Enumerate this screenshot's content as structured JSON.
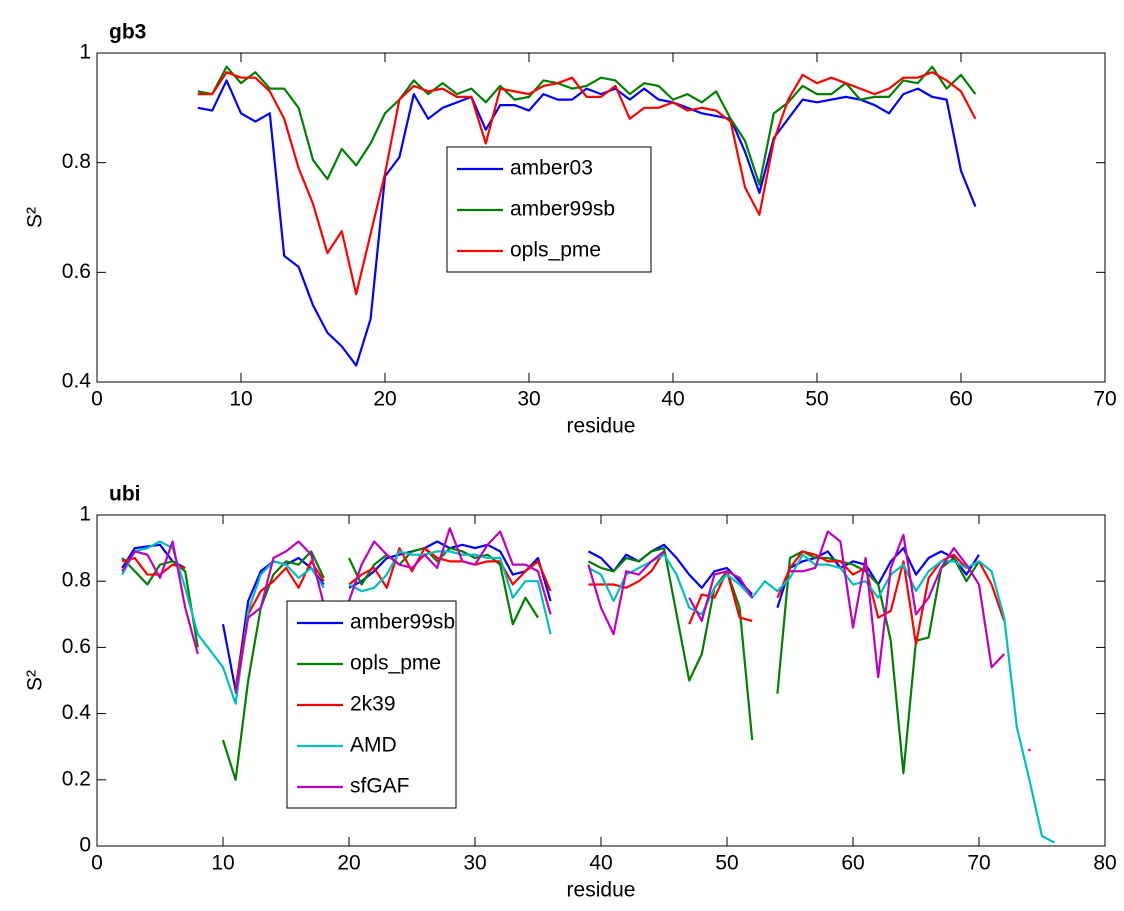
{
  "chart_data": [
    {
      "type": "line",
      "title": "gb3",
      "xlabel": "residue",
      "ylabel": "S²",
      "xlim": [
        0,
        70
      ],
      "xticks": [
        0,
        10,
        20,
        30,
        40,
        50,
        60,
        70
      ],
      "ylim": [
        0.4,
        1
      ],
      "yticks": [
        0.4,
        0.6,
        0.8,
        1
      ],
      "x": [
        7,
        8,
        9,
        10,
        11,
        12,
        13,
        14,
        15,
        16,
        17,
        18,
        19,
        20,
        21,
        22,
        23,
        24,
        25,
        26,
        27,
        28,
        29,
        30,
        31,
        32,
        33,
        34,
        35,
        36,
        37,
        38,
        39,
        40,
        41,
        42,
        43,
        44,
        45,
        46,
        47,
        48,
        49,
        50,
        51,
        52,
        53,
        54,
        55,
        56,
        57,
        58,
        59,
        60,
        61
      ],
      "series": [
        {
          "name": "amber03",
          "color": "#0000ff",
          "values": [
            0.9,
            0.895,
            0.95,
            0.89,
            0.875,
            0.89,
            0.63,
            0.61,
            0.54,
            0.49,
            0.465,
            0.43,
            0.515,
            0.775,
            0.81,
            0.925,
            0.88,
            0.9,
            0.91,
            0.92,
            0.86,
            0.905,
            0.905,
            0.895,
            0.925,
            0.915,
            0.915,
            0.935,
            0.925,
            0.935,
            0.915,
            0.935,
            0.915,
            0.91,
            0.9,
            0.89,
            0.885,
            0.88,
            0.82,
            0.745,
            0.845,
            0.88,
            0.915,
            0.91,
            0.915,
            0.92,
            0.915,
            0.905,
            0.89,
            0.925,
            0.935,
            0.92,
            0.915,
            0.785,
            0.72
          ]
        },
        {
          "name": "amber99sb",
          "color": "#008000",
          "values": [
            0.93,
            0.925,
            0.975,
            0.945,
            0.965,
            0.935,
            0.935,
            0.9,
            0.805,
            0.77,
            0.825,
            0.795,
            0.835,
            0.89,
            0.915,
            0.95,
            0.925,
            0.945,
            0.925,
            0.935,
            0.91,
            0.94,
            0.915,
            0.92,
            0.95,
            0.945,
            0.935,
            0.94,
            0.955,
            0.95,
            0.925,
            0.945,
            0.94,
            0.915,
            0.925,
            0.91,
            0.93,
            0.88,
            0.84,
            0.76,
            0.89,
            0.91,
            0.94,
            0.925,
            0.925,
            0.945,
            0.915,
            0.92,
            0.92,
            0.95,
            0.945,
            0.975,
            0.935,
            0.96,
            0.925
          ]
        },
        {
          "name": "opls_pme",
          "color": "#ff0000",
          "values": [
            0.925,
            0.925,
            0.965,
            0.955,
            0.955,
            0.93,
            0.88,
            0.79,
            0.725,
            0.635,
            0.675,
            0.56,
            0.67,
            0.78,
            0.915,
            0.94,
            0.93,
            0.935,
            0.92,
            0.92,
            0.835,
            0.935,
            0.93,
            0.925,
            0.94,
            0.945,
            0.955,
            0.92,
            0.92,
            0.94,
            0.88,
            0.9,
            0.9,
            0.91,
            0.895,
            0.9,
            0.895,
            0.875,
            0.755,
            0.705,
            0.84,
            0.915,
            0.96,
            0.945,
            0.955,
            0.945,
            0.935,
            0.925,
            0.935,
            0.955,
            0.955,
            0.965,
            0.95,
            0.93,
            0.88
          ]
        }
      ]
    },
    {
      "type": "line",
      "title": "ubi",
      "xlabel": "residue",
      "ylabel": "S²",
      "xlim": [
        0,
        80
      ],
      "xticks": [
        0,
        10,
        20,
        30,
        40,
        50,
        60,
        70,
        80
      ],
      "ylim": [
        0,
        1
      ],
      "yticks": [
        0,
        0.2,
        0.4,
        0.6,
        0.8,
        1
      ],
      "x": [
        2,
        3,
        4,
        5,
        6,
        7,
        8,
        9,
        10,
        11,
        12,
        13,
        14,
        15,
        16,
        17,
        18,
        19,
        20,
        21,
        22,
        23,
        24,
        25,
        26,
        27,
        28,
        29,
        30,
        31,
        32,
        33,
        34,
        35,
        36,
        37,
        38,
        39,
        40,
        41,
        42,
        43,
        44,
        45,
        46,
        47,
        48,
        49,
        50,
        51,
        52,
        53,
        54,
        55,
        56,
        57,
        58,
        59,
        60,
        61,
        62,
        63,
        64,
        65,
        66,
        67,
        68,
        69,
        70,
        71,
        72,
        73,
        74,
        75,
        76
      ],
      "series": [
        {
          "name": "amber99sb",
          "color": "#0000ff",
          "values": [
            0.84,
            0.9,
            0.905,
            0.91,
            0.86,
            0.84,
            null,
            null,
            0.67,
            0.47,
            0.74,
            0.83,
            0.86,
            0.85,
            0.87,
            0.84,
            0.79,
            null,
            0.78,
            0.8,
            0.83,
            0.87,
            0.88,
            0.89,
            0.9,
            0.92,
            0.9,
            0.91,
            0.9,
            0.91,
            0.89,
            0.82,
            0.83,
            0.87,
            0.74,
            null,
            null,
            0.89,
            0.87,
            0.83,
            0.88,
            0.86,
            0.89,
            0.91,
            0.87,
            0.82,
            0.78,
            0.83,
            0.84,
            0.8,
            0.76,
            null,
            0.72,
            0.84,
            0.86,
            0.87,
            0.89,
            0.84,
            0.86,
            0.85,
            0.79,
            0.86,
            0.9,
            0.82,
            0.87,
            0.89,
            0.87,
            0.82,
            0.88,
            null,
            null,
            null,
            null,
            null,
            null
          ]
        },
        {
          "name": "opls_pme",
          "color": "#008000",
          "values": [
            0.87,
            0.83,
            0.79,
            0.85,
            0.86,
            0.83,
            0.6,
            null,
            0.32,
            0.2,
            0.5,
            0.72,
            0.82,
            0.86,
            0.85,
            0.89,
            0.81,
            null,
            0.87,
            0.79,
            0.85,
            0.88,
            0.85,
            0.89,
            0.9,
            0.86,
            0.9,
            0.89,
            0.87,
            0.88,
            0.85,
            0.67,
            0.75,
            0.69,
            null,
            null,
            null,
            0.86,
            0.84,
            0.83,
            0.87,
            0.86,
            0.89,
            0.9,
            0.7,
            0.5,
            0.58,
            0.78,
            0.83,
            0.72,
            0.32,
            null,
            0.46,
            0.87,
            0.89,
            0.87,
            0.87,
            0.86,
            0.85,
            0.83,
            0.79,
            0.62,
            0.22,
            0.62,
            0.63,
            0.84,
            0.87,
            0.8,
            0.86,
            null,
            null,
            null,
            null,
            null,
            null
          ]
        },
        {
          "name": "2k39",
          "color": "#ff0000",
          "values": [
            0.86,
            0.87,
            0.82,
            0.82,
            0.85,
            0.84,
            null,
            null,
            null,
            0.48,
            0.7,
            0.77,
            0.8,
            0.84,
            0.78,
            0.86,
            0.8,
            null,
            0.79,
            0.82,
            0.84,
            0.78,
            0.9,
            0.83,
            0.9,
            0.87,
            0.86,
            0.86,
            0.85,
            0.86,
            0.86,
            0.79,
            0.83,
            0.86,
            0.77,
            null,
            null,
            0.79,
            0.79,
            0.79,
            0.78,
            0.8,
            0.83,
            0.89,
            null,
            0.67,
            0.76,
            0.75,
            0.83,
            0.69,
            0.68,
            null,
            0.75,
            0.84,
            0.89,
            0.88,
            0.86,
            0.86,
            0.82,
            0.84,
            0.69,
            0.71,
            0.86,
            0.61,
            0.81,
            0.86,
            0.88,
            0.84,
            0.86,
            0.79,
            0.68,
            null,
            null,
            null,
            null
          ]
        },
        {
          "name": "AMD",
          "color": "#00bfbf",
          "values": [
            0.82,
            0.89,
            0.9,
            0.92,
            0.9,
            0.78,
            0.64,
            0.59,
            0.54,
            0.43,
            0.71,
            0.82,
            0.86,
            0.85,
            0.81,
            0.84,
            0.78,
            null,
            0.79,
            0.77,
            0.78,
            0.82,
            0.89,
            0.88,
            0.88,
            0.89,
            0.89,
            0.88,
            0.88,
            0.87,
            0.87,
            0.75,
            0.8,
            0.8,
            0.64,
            null,
            null,
            0.84,
            0.82,
            0.74,
            0.82,
            0.84,
            0.86,
            0.88,
            0.82,
            0.72,
            0.7,
            0.78,
            0.82,
            0.79,
            0.75,
            0.8,
            0.77,
            0.81,
            0.88,
            0.85,
            0.85,
            0.84,
            0.79,
            0.8,
            0.75,
            0.82,
            0.85,
            0.77,
            0.83,
            0.86,
            0.86,
            0.84,
            0.86,
            0.83,
            0.69,
            0.36,
            0.2,
            0.03,
            0.01
          ]
        },
        {
          "name": "sfGAF",
          "color": "#bf00bf",
          "values": [
            0.83,
            0.89,
            0.88,
            0.81,
            0.92,
            0.72,
            0.58,
            null,
            null,
            0.46,
            0.69,
            0.72,
            0.87,
            0.89,
            0.92,
            0.88,
            0.73,
            null,
            0.74,
            0.85,
            0.92,
            0.88,
            0.85,
            0.84,
            0.88,
            0.84,
            0.96,
            0.86,
            0.85,
            0.91,
            0.95,
            0.85,
            0.85,
            0.83,
            0.7,
            null,
            null,
            0.85,
            0.72,
            0.64,
            0.83,
            0.82,
            0.86,
            0.89,
            null,
            0.75,
            0.68,
            0.82,
            0.83,
            0.81,
            0.75,
            null,
            null,
            0.83,
            0.83,
            0.84,
            0.95,
            0.92,
            0.66,
            0.87,
            0.51,
            0.84,
            0.94,
            0.7,
            0.75,
            0.84,
            0.9,
            0.85,
            0.79,
            0.54,
            0.58,
            null,
            0.29,
            null,
            null
          ]
        }
      ]
    }
  ]
}
